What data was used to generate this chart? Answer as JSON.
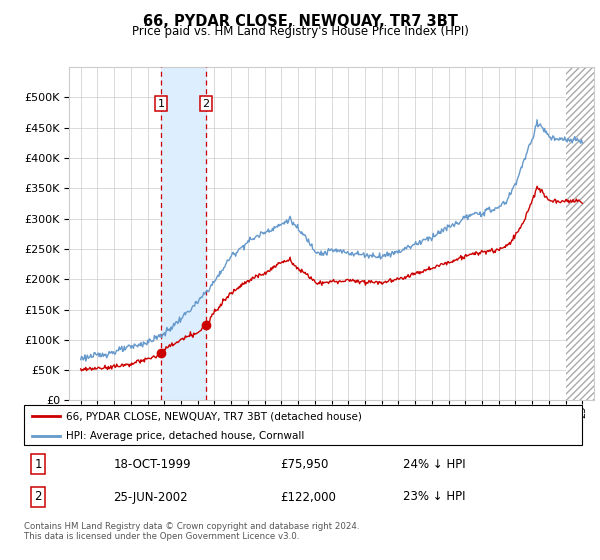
{
  "title": "66, PYDAR CLOSE, NEWQUAY, TR7 3BT",
  "subtitle": "Price paid vs. HM Land Registry's House Price Index (HPI)",
  "legend_label_red": "66, PYDAR CLOSE, NEWQUAY, TR7 3BT (detached house)",
  "legend_label_blue": "HPI: Average price, detached house, Cornwall",
  "transaction1_date": "18-OCT-1999",
  "transaction1_price": "£75,950",
  "transaction1_note": "24% ↓ HPI",
  "transaction1_year": 1999.8,
  "transaction1_value": 75950,
  "transaction2_date": "25-JUN-2002",
  "transaction2_price": "£122,000",
  "transaction2_note": "23% ↓ HPI",
  "transaction2_year": 2002.5,
  "transaction2_value": 122000,
  "footer": "Contains HM Land Registry data © Crown copyright and database right 2024.\nThis data is licensed under the Open Government Licence v3.0.",
  "ylim": [
    0,
    550000
  ],
  "yticks": [
    0,
    50000,
    100000,
    150000,
    200000,
    250000,
    300000,
    350000,
    400000,
    450000,
    500000
  ],
  "red_color": "#cc0000",
  "blue_color": "#6699cc",
  "shading_color": "#ddeeff",
  "grid_color": "#cccccc",
  "background_color": "#ffffff",
  "hpi_key_years": [
    1995,
    1996,
    1997,
    1998,
    1999,
    2000,
    2001,
    2002,
    2003,
    2004,
    2005,
    2006,
    2007,
    2007.5,
    2008,
    2008.5,
    2009,
    2009.5,
    2010,
    2011,
    2012,
    2013,
    2014,
    2015,
    2016,
    2017,
    2017.5,
    2018,
    2019,
    2020,
    2020.5,
    2021,
    2021.5,
    2022,
    2022.3,
    2022.7,
    2023,
    2023.5,
    2024,
    2025
  ],
  "hpi_key_vals": [
    70000,
    74000,
    80000,
    88000,
    96000,
    110000,
    135000,
    162000,
    196000,
    238000,
    262000,
    278000,
    290000,
    300000,
    282000,
    268000,
    248000,
    242000,
    248000,
    244000,
    240000,
    238000,
    246000,
    258000,
    270000,
    286000,
    292000,
    302000,
    310000,
    318000,
    330000,
    358000,
    395000,
    430000,
    460000,
    448000,
    435000,
    430000,
    430000,
    428000
  ],
  "red_key_years": [
    1995,
    1996,
    1997,
    1998,
    1999,
    1999.8,
    2000,
    2001,
    2002,
    2002.5,
    2003,
    2004,
    2005,
    2006,
    2007,
    2007.5,
    2008,
    2008.5,
    2009,
    2009.5,
    2010,
    2011,
    2012,
    2013,
    2014,
    2015,
    2016,
    2017,
    2018,
    2019,
    2020,
    2020.5,
    2021,
    2021.5,
    2022,
    2022.3,
    2022.7,
    2023,
    2023.5,
    2024,
    2025
  ],
  "red_key_vals": [
    50000,
    53000,
    56000,
    60000,
    68000,
    75950,
    84000,
    100000,
    112000,
    122000,
    148000,
    178000,
    198000,
    210000,
    228000,
    232000,
    218000,
    208000,
    196000,
    193000,
    196000,
    198000,
    196000,
    195000,
    200000,
    210000,
    218000,
    228000,
    238000,
    245000,
    248000,
    255000,
    272000,
    295000,
    330000,
    352000,
    340000,
    330000,
    328000,
    330000,
    328000
  ]
}
